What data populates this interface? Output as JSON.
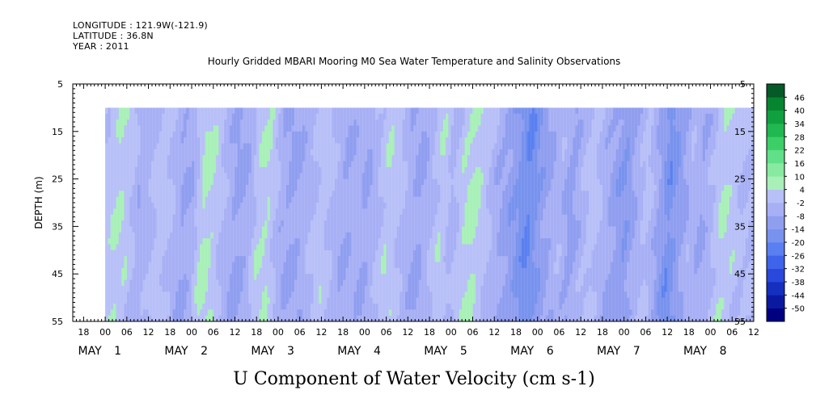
{
  "header": {
    "longitude": "LONGITUDE : 121.9W(-121.9)",
    "latitude": "LATITUDE : 36.8N",
    "year": "YEAR : 2011"
  },
  "chart_data": {
    "type": "heatmap",
    "title": "Hourly Gridded MBARI Mooring M0 Sea Water Temperature and Salinity Observations",
    "xlabel": "U Component of Water Velocity (cm s-1)",
    "ylabel": "DEPTH (m)",
    "ylim": [
      55,
      5
    ],
    "y_ticks": [
      5,
      15,
      25,
      35,
      45,
      55
    ],
    "x_range_hours": [
      -9,
      180
    ],
    "data_start_hour": 0,
    "data_top_depth": 10,
    "hour_ticks": [
      "18",
      "00",
      "06",
      "12",
      "18",
      "00",
      "06",
      "12",
      "18",
      "00",
      "06",
      "12",
      "18",
      "00",
      "06",
      "12",
      "18",
      "00",
      "06",
      "12",
      "18",
      "00",
      "06",
      "12",
      "18",
      "00",
      "06",
      "12",
      "18",
      "00",
      "06",
      "12"
    ],
    "first_hour_tick": -6,
    "hour_tick_step": 6,
    "day_labels": [
      {
        "month": "MAY",
        "day": "1",
        "hour": -1
      },
      {
        "month": "MAY",
        "day": "2",
        "hour": 23
      },
      {
        "month": "MAY",
        "day": "3",
        "hour": 47
      },
      {
        "month": "MAY",
        "day": "4",
        "hour": 71
      },
      {
        "month": "MAY",
        "day": "5",
        "hour": 95
      },
      {
        "month": "MAY",
        "day": "6",
        "hour": 119
      },
      {
        "month": "MAY",
        "day": "7",
        "hour": 143
      },
      {
        "month": "MAY",
        "day": "8",
        "hour": 167
      }
    ],
    "colorbar": {
      "levels": [
        -50,
        -44,
        -38,
        -32,
        -26,
        -20,
        -14,
        -8,
        -2,
        4,
        10,
        16,
        22,
        28,
        34,
        40,
        46
      ],
      "colors": [
        "#000080",
        "#0a1aa0",
        "#1530c0",
        "#2a48dc",
        "#3f63ea",
        "#5a7ff0",
        "#7893ee",
        "#909ef0",
        "#a8b0f5",
        "#b8c0f8",
        "#a8f0b8",
        "#88eaa0",
        "#60e088",
        "#3ccf68",
        "#20b850",
        "#10a040",
        "#068530",
        "#055a28"
      ],
      "tick_labels": [
        "46",
        "40",
        "34",
        "28",
        "22",
        "16",
        "10",
        "4",
        "-2",
        "-8",
        "-14",
        "-20",
        "-26",
        "-32",
        "-38",
        "-44",
        "-50"
      ]
    },
    "columns_hourly_sample": [
      {
        "hour": 0,
        "value": 0
      },
      {
        "hour": 3,
        "value": 4
      },
      {
        "hour": 6,
        "value": 2
      },
      {
        "hour": 9,
        "value": -6
      },
      {
        "hour": 12,
        "value": -4
      },
      {
        "hour": 15,
        "value": 2
      },
      {
        "hour": 18,
        "value": -2
      },
      {
        "hour": 21,
        "value": -8
      },
      {
        "hour": 24,
        "value": -6
      },
      {
        "hour": 27,
        "value": 6
      },
      {
        "hour": 30,
        "value": 3
      },
      {
        "hour": 33,
        "value": -4
      },
      {
        "hour": 36,
        "value": -9
      },
      {
        "hour": 39,
        "value": -7
      },
      {
        "hour": 42,
        "value": 2
      },
      {
        "hour": 45,
        "value": 4
      },
      {
        "hour": 48,
        "value": -5
      },
      {
        "hour": 51,
        "value": -9
      },
      {
        "hour": 54,
        "value": -7
      },
      {
        "hour": 57,
        "value": -3
      },
      {
        "hour": 60,
        "value": 2
      },
      {
        "hour": 63,
        "value": -3
      },
      {
        "hour": 66,
        "value": -8
      },
      {
        "hour": 69,
        "value": -5
      },
      {
        "hour": 72,
        "value": -8
      },
      {
        "hour": 75,
        "value": -3
      },
      {
        "hour": 78,
        "value": 3
      },
      {
        "hour": 81,
        "value": 0
      },
      {
        "hour": 84,
        "value": -6
      },
      {
        "hour": 87,
        "value": -9
      },
      {
        "hour": 90,
        "value": -3
      },
      {
        "hour": 93,
        "value": 3
      },
      {
        "hour": 96,
        "value": -5
      },
      {
        "hour": 99,
        "value": 3
      },
      {
        "hour": 102,
        "value": 6
      },
      {
        "hour": 105,
        "value": 1
      },
      {
        "hour": 108,
        "value": -6
      },
      {
        "hour": 111,
        "value": -10
      },
      {
        "hour": 114,
        "value": -14
      },
      {
        "hour": 117,
        "value": -20
      },
      {
        "hour": 120,
        "value": -13
      },
      {
        "hour": 123,
        "value": -8
      },
      {
        "hour": 126,
        "value": -4
      },
      {
        "hour": 129,
        "value": -10
      },
      {
        "hour": 132,
        "value": -4
      },
      {
        "hour": 135,
        "value": 1
      },
      {
        "hour": 138,
        "value": -5
      },
      {
        "hour": 141,
        "value": -10
      },
      {
        "hour": 144,
        "value": -14
      },
      {
        "hour": 147,
        "value": -6
      },
      {
        "hour": 150,
        "value": 0
      },
      {
        "hour": 153,
        "value": -8
      },
      {
        "hour": 156,
        "value": -18
      },
      {
        "hour": 159,
        "value": -12
      },
      {
        "hour": 162,
        "value": -4
      },
      {
        "hour": 165,
        "value": -8
      },
      {
        "hour": 168,
        "value": -3
      },
      {
        "hour": 171,
        "value": 4
      },
      {
        "hour": 174,
        "value": 2
      },
      {
        "hour": 177,
        "value": -2
      }
    ]
  }
}
